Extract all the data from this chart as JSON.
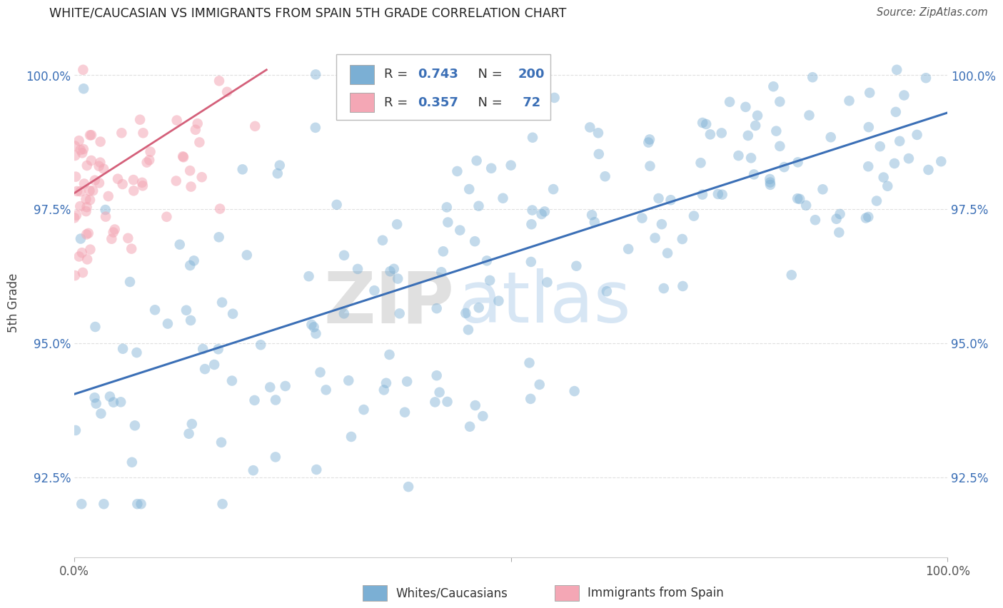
{
  "title": "WHITE/CAUCASIAN VS IMMIGRANTS FROM SPAIN 5TH GRADE CORRELATION CHART",
  "source": "Source: ZipAtlas.com",
  "ylabel": "5th Grade",
  "xlabel": "",
  "xlim": [
    0.0,
    1.0
  ],
  "ylim": [
    0.91,
    1.005
  ],
  "yticks": [
    0.925,
    0.95,
    0.975,
    1.0
  ],
  "ytick_labels": [
    "92.5%",
    "95.0%",
    "97.5%",
    "100.0%"
  ],
  "xticks": [
    0.0,
    0.5,
    1.0
  ],
  "xtick_labels": [
    "0.0%",
    "",
    "100.0%"
  ],
  "blue_R": 0.743,
  "blue_N": 200,
  "pink_R": 0.357,
  "pink_N": 72,
  "blue_color": "#7BAFD4",
  "pink_color": "#F4A7B5",
  "blue_line_color": "#3B6FB6",
  "pink_line_color": "#D4607A",
  "watermark_zip": "ZIP",
  "watermark_atlas": "atlas",
  "legend_label_blue": "Whites/Caucasians",
  "legend_label_pink": "Immigrants from Spain",
  "background_color": "#FFFFFF",
  "grid_color": "#DDDDDD",
  "title_color": "#222222",
  "axis_label_color": "#3B6FB6",
  "source_color": "#555555"
}
